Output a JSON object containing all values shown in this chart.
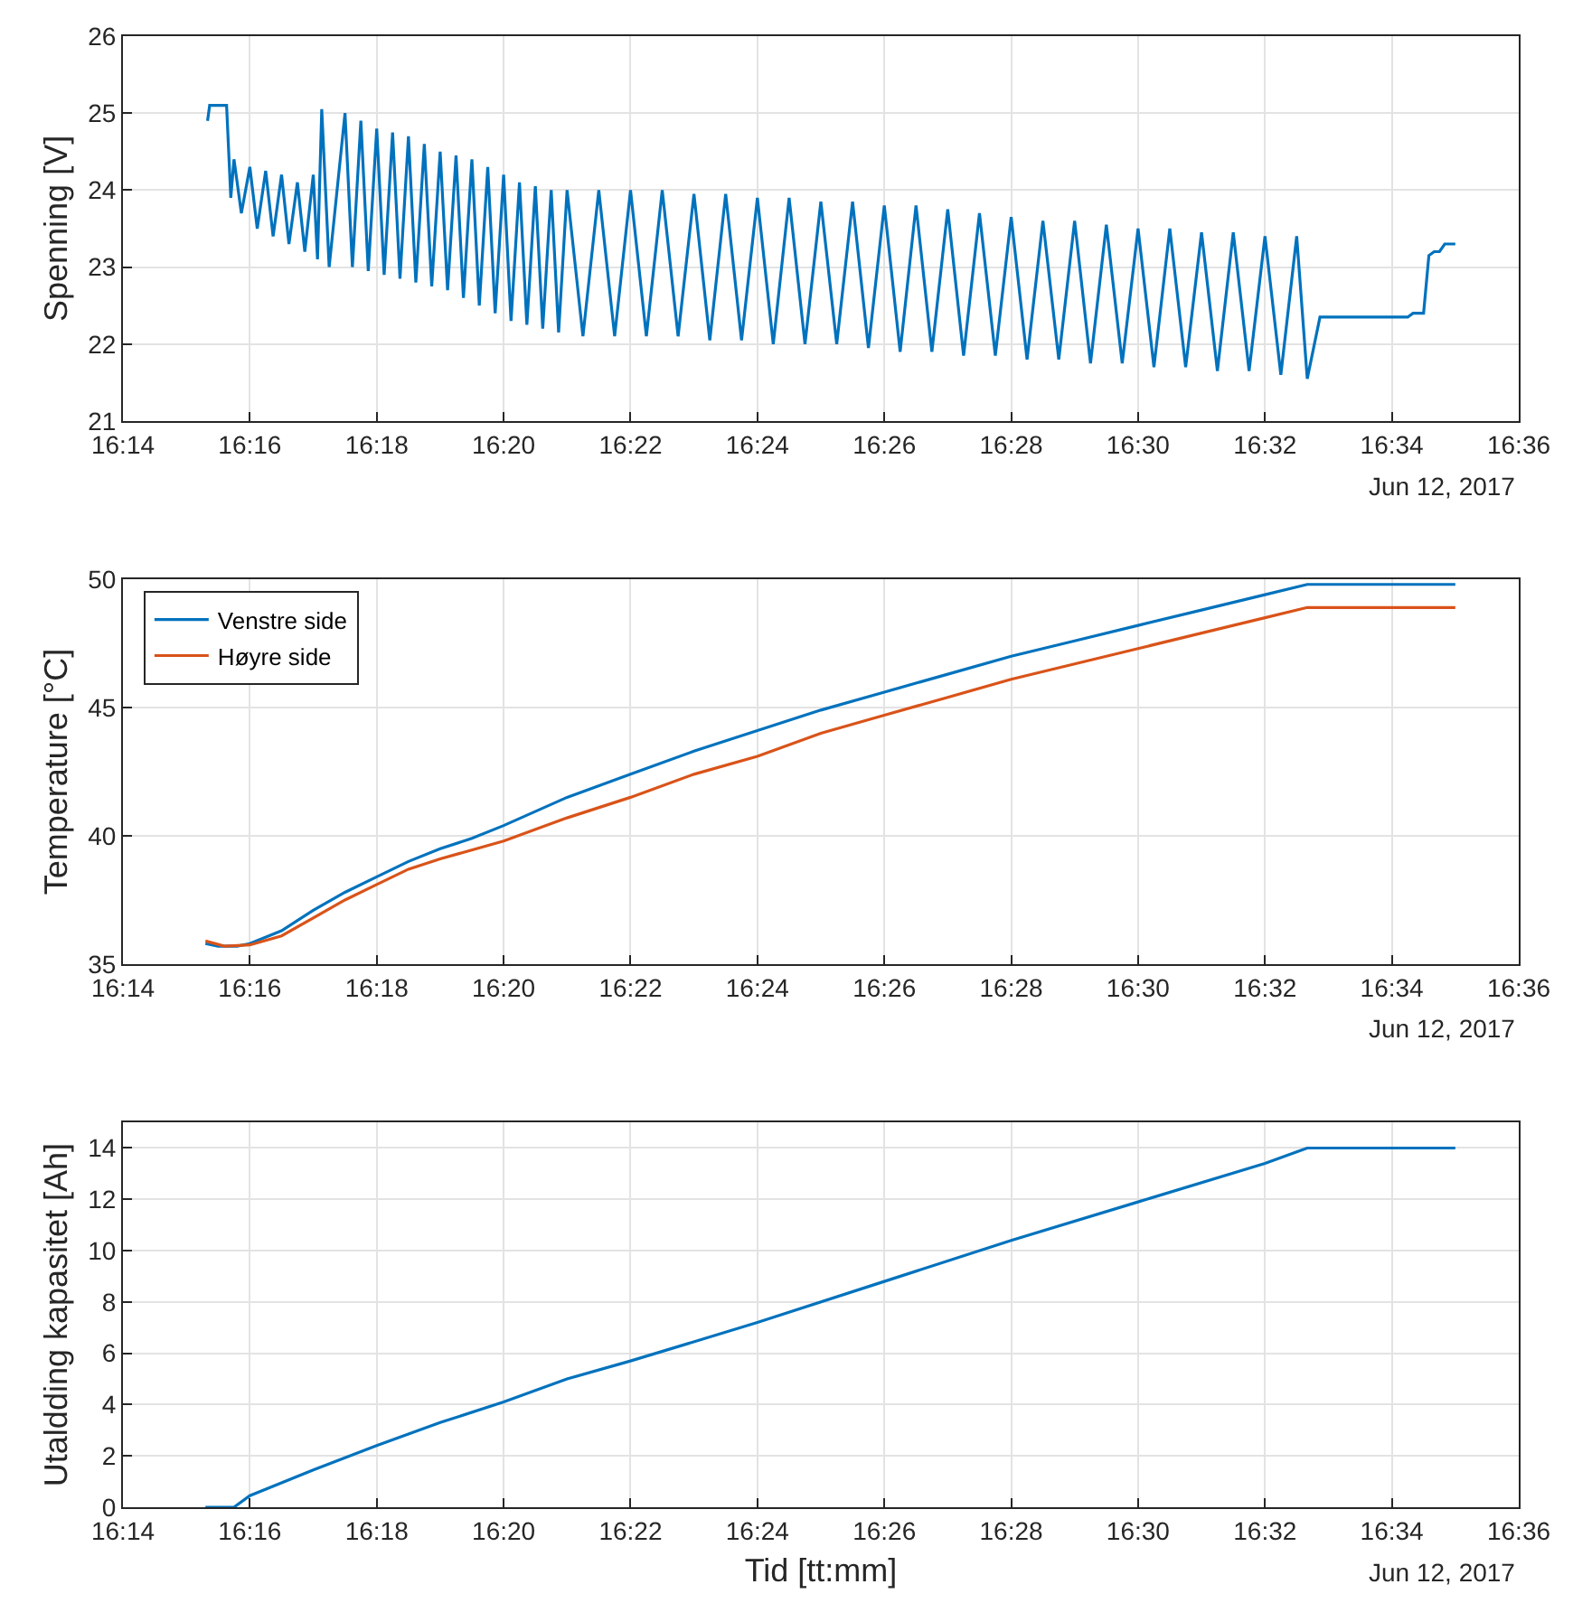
{
  "chart_data": [
    {
      "type": "line",
      "ylabel": "Spenning [V]",
      "annotations": [
        "Jun 12, 2017"
      ],
      "grid": true,
      "legend": false,
      "marker": "none",
      "line_style": "solid",
      "xlim": [
        "2017-06-12T16:14:00",
        "2017-06-12T16:36:00"
      ],
      "xticks": [
        {
          "value": "2017-06-12T16:14:00",
          "label": "16:14"
        },
        {
          "value": "2017-06-12T16:16:00",
          "label": "16:16"
        },
        {
          "value": "2017-06-12T16:18:00",
          "label": "16:18"
        },
        {
          "value": "2017-06-12T16:20:00",
          "label": "16:20"
        },
        {
          "value": "2017-06-12T16:22:00",
          "label": "16:22"
        },
        {
          "value": "2017-06-12T16:24:00",
          "label": "16:24"
        },
        {
          "value": "2017-06-12T16:26:00",
          "label": "16:26"
        },
        {
          "value": "2017-06-12T16:28:00",
          "label": "16:28"
        },
        {
          "value": "2017-06-12T16:30:00",
          "label": "16:30"
        },
        {
          "value": "2017-06-12T16:32:00",
          "label": "16:32"
        },
        {
          "value": "2017-06-12T16:34:00",
          "label": "16:34"
        },
        {
          "value": "2017-06-12T16:36:00",
          "label": "16:36"
        }
      ],
      "ylim": [
        21,
        26
      ],
      "yticks": [
        21,
        22,
        23,
        24,
        25,
        26
      ],
      "series": [
        {
          "color": "#0072bd",
          "x": [
            "2017-06-12T16:15:20",
            "2017-06-12T16:15:22",
            "2017-06-12T16:15:30",
            "2017-06-12T16:15:38",
            "2017-06-12T16:15:42",
            "2017-06-12T16:15:45",
            "2017-06-12T16:15:52",
            "2017-06-12T16:16:00",
            "2017-06-12T16:16:07",
            "2017-06-12T16:16:15",
            "2017-06-12T16:16:22",
            "2017-06-12T16:16:30",
            "2017-06-12T16:16:37",
            "2017-06-12T16:16:45",
            "2017-06-12T16:16:52",
            "2017-06-12T16:17:00",
            "2017-06-12T16:17:04",
            "2017-06-12T16:17:08",
            "2017-06-12T16:17:15",
            "2017-06-12T16:17:30",
            "2017-06-12T16:17:37",
            "2017-06-12T16:17:45",
            "2017-06-12T16:17:52",
            "2017-06-12T16:18:00",
            "2017-06-12T16:18:07",
            "2017-06-12T16:18:15",
            "2017-06-12T16:18:22",
            "2017-06-12T16:18:30",
            "2017-06-12T16:18:37",
            "2017-06-12T16:18:45",
            "2017-06-12T16:18:52",
            "2017-06-12T16:19:00",
            "2017-06-12T16:19:07",
            "2017-06-12T16:19:15",
            "2017-06-12T16:19:22",
            "2017-06-12T16:19:30",
            "2017-06-12T16:19:37",
            "2017-06-12T16:19:45",
            "2017-06-12T16:19:52",
            "2017-06-12T16:20:00",
            "2017-06-12T16:20:07",
            "2017-06-12T16:20:15",
            "2017-06-12T16:20:22",
            "2017-06-12T16:20:30",
            "2017-06-12T16:20:37",
            "2017-06-12T16:20:45",
            "2017-06-12T16:20:52",
            "2017-06-12T16:21:00",
            "2017-06-12T16:21:15",
            "2017-06-12T16:21:30",
            "2017-06-12T16:21:45",
            "2017-06-12T16:22:00",
            "2017-06-12T16:22:15",
            "2017-06-12T16:22:30",
            "2017-06-12T16:22:45",
            "2017-06-12T16:23:00",
            "2017-06-12T16:23:15",
            "2017-06-12T16:23:30",
            "2017-06-12T16:23:45",
            "2017-06-12T16:24:00",
            "2017-06-12T16:24:15",
            "2017-06-12T16:24:30",
            "2017-06-12T16:24:45",
            "2017-06-12T16:25:00",
            "2017-06-12T16:25:15",
            "2017-06-12T16:25:30",
            "2017-06-12T16:25:45",
            "2017-06-12T16:26:00",
            "2017-06-12T16:26:15",
            "2017-06-12T16:26:30",
            "2017-06-12T16:26:45",
            "2017-06-12T16:27:00",
            "2017-06-12T16:27:15",
            "2017-06-12T16:27:30",
            "2017-06-12T16:27:45",
            "2017-06-12T16:28:00",
            "2017-06-12T16:28:15",
            "2017-06-12T16:28:30",
            "2017-06-12T16:28:45",
            "2017-06-12T16:29:00",
            "2017-06-12T16:29:15",
            "2017-06-12T16:29:30",
            "2017-06-12T16:29:45",
            "2017-06-12T16:30:00",
            "2017-06-12T16:30:15",
            "2017-06-12T16:30:30",
            "2017-06-12T16:30:45",
            "2017-06-12T16:31:00",
            "2017-06-12T16:31:15",
            "2017-06-12T16:31:30",
            "2017-06-12T16:31:45",
            "2017-06-12T16:32:00",
            "2017-06-12T16:32:15",
            "2017-06-12T16:32:30",
            "2017-06-12T16:32:40",
            "2017-06-12T16:32:52",
            "2017-06-12T16:34:15",
            "2017-06-12T16:34:20",
            "2017-06-12T16:34:30",
            "2017-06-12T16:34:35",
            "2017-06-12T16:34:40",
            "2017-06-12T16:34:45",
            "2017-06-12T16:34:50",
            "2017-06-12T16:35:00"
          ],
          "values": [
            24.9,
            25.1,
            25.1,
            25.1,
            23.9,
            24.4,
            23.7,
            24.3,
            23.5,
            24.25,
            23.4,
            24.2,
            23.3,
            24.1,
            23.2,
            24.2,
            23.1,
            25.05,
            23.0,
            25.0,
            23.0,
            24.9,
            22.95,
            24.8,
            22.9,
            24.75,
            22.85,
            24.7,
            22.8,
            24.6,
            22.75,
            24.5,
            22.7,
            24.45,
            22.6,
            24.4,
            22.5,
            24.3,
            22.4,
            24.2,
            22.3,
            24.1,
            22.25,
            24.05,
            22.2,
            24.0,
            22.15,
            24.0,
            22.1,
            24.0,
            22.1,
            24.0,
            22.1,
            24.0,
            22.1,
            23.95,
            22.05,
            23.95,
            22.05,
            23.9,
            22.0,
            23.9,
            22.0,
            23.85,
            22.0,
            23.85,
            21.95,
            23.8,
            21.9,
            23.8,
            21.9,
            23.75,
            21.85,
            23.7,
            21.85,
            23.65,
            21.8,
            23.6,
            21.8,
            23.6,
            21.75,
            23.55,
            21.75,
            23.5,
            21.7,
            23.5,
            21.7,
            23.45,
            21.65,
            23.45,
            21.65,
            23.4,
            21.6,
            23.4,
            21.55,
            22.35,
            22.35,
            22.4,
            22.4,
            23.15,
            23.2,
            23.2,
            23.3,
            23.3
          ]
        }
      ]
    },
    {
      "type": "line",
      "ylabel": "Temperature [°C]",
      "annotations": [
        "Jun 12, 2017"
      ],
      "grid": true,
      "legend": "top left",
      "marker": "none",
      "line_style": "solid",
      "xlim": [
        "2017-06-12T16:14:00",
        "2017-06-12T16:36:00"
      ],
      "xticks": [
        {
          "value": "2017-06-12T16:14:00",
          "label": "16:14"
        },
        {
          "value": "2017-06-12T16:16:00",
          "label": "16:16"
        },
        {
          "value": "2017-06-12T16:18:00",
          "label": "16:18"
        },
        {
          "value": "2017-06-12T16:20:00",
          "label": "16:20"
        },
        {
          "value": "2017-06-12T16:22:00",
          "label": "16:22"
        },
        {
          "value": "2017-06-12T16:24:00",
          "label": "16:24"
        },
        {
          "value": "2017-06-12T16:26:00",
          "label": "16:26"
        },
        {
          "value": "2017-06-12T16:28:00",
          "label": "16:28"
        },
        {
          "value": "2017-06-12T16:30:00",
          "label": "16:30"
        },
        {
          "value": "2017-06-12T16:32:00",
          "label": "16:32"
        },
        {
          "value": "2017-06-12T16:34:00",
          "label": "16:34"
        },
        {
          "value": "2017-06-12T16:36:00",
          "label": "16:36"
        }
      ],
      "ylim": [
        35,
        50
      ],
      "yticks": [
        35,
        40,
        45,
        50
      ],
      "series": [
        {
          "name": "Venstre side",
          "color": "#0072bd",
          "x": [
            "2017-06-12T16:15:18",
            "2017-06-12T16:15:30",
            "2017-06-12T16:15:48",
            "2017-06-12T16:16:00",
            "2017-06-12T16:16:30",
            "2017-06-12T16:17:00",
            "2017-06-12T16:17:30",
            "2017-06-12T16:18:00",
            "2017-06-12T16:18:30",
            "2017-06-12T16:19:00",
            "2017-06-12T16:19:30",
            "2017-06-12T16:20:00",
            "2017-06-12T16:21:00",
            "2017-06-12T16:22:00",
            "2017-06-12T16:23:00",
            "2017-06-12T16:24:00",
            "2017-06-12T16:25:00",
            "2017-06-12T16:26:00",
            "2017-06-12T16:27:00",
            "2017-06-12T16:28:00",
            "2017-06-12T16:29:00",
            "2017-06-12T16:30:00",
            "2017-06-12T16:31:00",
            "2017-06-12T16:32:00",
            "2017-06-12T16:32:40",
            "2017-06-12T16:35:00"
          ],
          "values": [
            35.8,
            35.7,
            35.7,
            35.8,
            36.3,
            37.1,
            37.8,
            38.4,
            39.0,
            39.5,
            39.9,
            40.4,
            41.5,
            42.4,
            43.3,
            44.1,
            44.9,
            45.6,
            46.3,
            47.0,
            47.6,
            48.2,
            48.8,
            49.4,
            49.8,
            49.8
          ]
        },
        {
          "name": "Høyre side",
          "color": "#d95319",
          "x": [
            "2017-06-12T16:15:18",
            "2017-06-12T16:15:36",
            "2017-06-12T16:16:00",
            "2017-06-12T16:16:30",
            "2017-06-12T16:17:00",
            "2017-06-12T16:17:30",
            "2017-06-12T16:18:00",
            "2017-06-12T16:18:30",
            "2017-06-12T16:19:00",
            "2017-06-12T16:20:00",
            "2017-06-12T16:21:00",
            "2017-06-12T16:22:00",
            "2017-06-12T16:23:00",
            "2017-06-12T16:24:00",
            "2017-06-12T16:25:00",
            "2017-06-12T16:26:00",
            "2017-06-12T16:27:00",
            "2017-06-12T16:28:00",
            "2017-06-12T16:29:00",
            "2017-06-12T16:30:00",
            "2017-06-12T16:31:00",
            "2017-06-12T16:32:00",
            "2017-06-12T16:32:40",
            "2017-06-12T16:35:00"
          ],
          "values": [
            35.9,
            35.7,
            35.75,
            36.1,
            36.8,
            37.5,
            38.1,
            38.7,
            39.1,
            39.8,
            40.7,
            41.5,
            42.4,
            43.1,
            44.0,
            44.7,
            45.4,
            46.1,
            46.7,
            47.3,
            47.9,
            48.5,
            48.9,
            48.9
          ]
        }
      ]
    },
    {
      "type": "line",
      "xlabel": "Tid [tt:mm]",
      "ylabel": "Utaldding kapasitet [Ah]",
      "annotations": [
        "Jun 12, 2017"
      ],
      "grid": true,
      "legend": false,
      "marker": "none",
      "line_style": "solid",
      "xlim": [
        "2017-06-12T16:14:00",
        "2017-06-12T16:36:00"
      ],
      "xticks": [
        {
          "value": "2017-06-12T16:14:00",
          "label": "16:14"
        },
        {
          "value": "2017-06-12T16:16:00",
          "label": "16:16"
        },
        {
          "value": "2017-06-12T16:18:00",
          "label": "16:18"
        },
        {
          "value": "2017-06-12T16:20:00",
          "label": "16:20"
        },
        {
          "value": "2017-06-12T16:22:00",
          "label": "16:22"
        },
        {
          "value": "2017-06-12T16:24:00",
          "label": "16:24"
        },
        {
          "value": "2017-06-12T16:26:00",
          "label": "16:26"
        },
        {
          "value": "2017-06-12T16:28:00",
          "label": "16:28"
        },
        {
          "value": "2017-06-12T16:30:00",
          "label": "16:30"
        },
        {
          "value": "2017-06-12T16:32:00",
          "label": "16:32"
        },
        {
          "value": "2017-06-12T16:34:00",
          "label": "16:34"
        },
        {
          "value": "2017-06-12T16:36:00",
          "label": "16:36"
        }
      ],
      "ylim": [
        0,
        15
      ],
      "yticks": [
        0,
        2,
        4,
        6,
        8,
        10,
        12,
        14
      ],
      "series": [
        {
          "color": "#0072bd",
          "x": [
            "2017-06-12T16:15:18",
            "2017-06-12T16:15:45",
            "2017-06-12T16:16:00",
            "2017-06-12T16:17:00",
            "2017-06-12T16:18:00",
            "2017-06-12T16:19:00",
            "2017-06-12T16:20:00",
            "2017-06-12T16:21:00",
            "2017-06-12T16:22:00",
            "2017-06-12T16:24:00",
            "2017-06-12T16:26:00",
            "2017-06-12T16:28:00",
            "2017-06-12T16:30:00",
            "2017-06-12T16:32:00",
            "2017-06-12T16:32:40",
            "2017-06-12T16:35:00"
          ],
          "values": [
            0,
            0,
            0.45,
            1.45,
            2.4,
            3.3,
            4.1,
            5.0,
            5.7,
            7.2,
            8.8,
            10.4,
            11.9,
            13.4,
            14.0,
            14.0
          ]
        }
      ]
    }
  ]
}
